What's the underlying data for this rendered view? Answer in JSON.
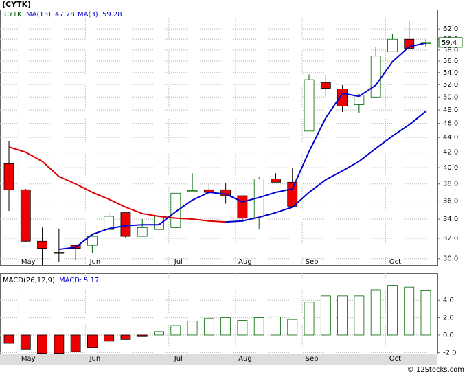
{
  "chart_data": [
    {
      "type": "candlestick",
      "title": "(CYTK)",
      "symbol": "CYTK",
      "categories": [
        null,
        "May",
        null,
        null,
        null,
        "Jun",
        null,
        null,
        null,
        null,
        "Jul",
        null,
        null,
        null,
        "Aug",
        null,
        null,
        null,
        "Sep",
        null,
        null,
        null,
        null,
        "Oct",
        null,
        null
      ],
      "open": [
        40.5,
        37.3,
        31.7,
        30.6,
        31.3,
        31.3,
        32.9,
        34.7,
        32.2,
        32.9,
        33.1,
        37.1,
        37.3,
        37.3,
        36.6,
        34.1,
        38.6,
        38.2,
        44.9,
        52.3,
        51.3,
        48.8,
        50.0,
        57.7,
        60.0,
        59.2
      ],
      "high": [
        43.5,
        37.4,
        33.1,
        33.0,
        31.4,
        32.5,
        34.7,
        34.7,
        34.0,
        35.0,
        36.9,
        39.3,
        38.0,
        38.1,
        36.6,
        38.8,
        39.3,
        40.0,
        53.7,
        53.7,
        51.9,
        50.5,
        58.5,
        61.0,
        63.6,
        59.9
      ],
      "low": [
        34.9,
        31.6,
        29.4,
        29.7,
        29.9,
        30.5,
        32.7,
        32.0,
        32.2,
        32.7,
        33.1,
        37.1,
        36.8,
        35.7,
        33.7,
        32.9,
        38.2,
        35.4,
        44.9,
        50.0,
        47.7,
        47.6,
        50.0,
        57.7,
        58.3,
        58.5
      ],
      "close": [
        37.3,
        31.7,
        31.0,
        30.5,
        31.0,
        32.2,
        34.3,
        32.2,
        33.1,
        34.3,
        36.9,
        37.2,
        37.0,
        36.6,
        34.1,
        38.6,
        38.2,
        35.4,
        52.8,
        51.4,
        48.6,
        50.3,
        56.9,
        60.0,
        58.3,
        59.4
      ],
      "up_color": "#006600",
      "down_color": "#ee0000",
      "series": [
        {
          "name": "MA(13)",
          "up_color": "#0000cc",
          "down_color": "#dd0000",
          "values": [
            42.7,
            42.0,
            40.8,
            38.9,
            38.0,
            37.0,
            36.2,
            35.3,
            34.6,
            34.3,
            34.1,
            34.0,
            33.8,
            33.7,
            33.8,
            34.2,
            34.7,
            35.3,
            37.0,
            38.5,
            39.6,
            40.8,
            42.5,
            44.2,
            45.8,
            47.78
          ]
        },
        {
          "name": "MA(3)",
          "color": "#0000cc",
          "values": [
            null,
            null,
            null,
            30.9,
            31.1,
            32.4,
            33.0,
            33.3,
            33.4,
            33.4,
            34.8,
            36.1,
            37.0,
            36.8,
            35.9,
            36.4,
            37.0,
            37.4,
            42.1,
            46.8,
            50.6,
            50.1,
            51.9,
            55.9,
            58.6,
            59.28
          ]
        }
      ],
      "log_scale": true,
      "grid": true,
      "ylim": [
        29.4,
        65.9
      ],
      "yticks": [
        {
          "value": 30,
          "label": "30.0"
        },
        {
          "value": 32,
          "label": "32.0"
        },
        {
          "value": 34,
          "label": "34.0"
        },
        {
          "value": 36,
          "label": "36.0"
        },
        {
          "value": 38,
          "label": "38.0"
        },
        {
          "value": 40,
          "label": "40.0"
        },
        {
          "value": 42,
          "label": "42.0"
        },
        {
          "value": 44,
          "label": "44.0"
        },
        {
          "value": 46,
          "label": "46.0"
        },
        {
          "value": 48,
          "label": "48.0"
        },
        {
          "value": 50,
          "label": "50.0"
        },
        {
          "value": 52,
          "label": "52.0"
        },
        {
          "value": 54,
          "label": "54.0"
        },
        {
          "value": 56,
          "label": "56.0"
        },
        {
          "value": 58,
          "label": "58.0"
        },
        {
          "value": 60,
          "label": "60.0"
        },
        {
          "value": 62,
          "label": "62.0"
        }
      ]
    },
    {
      "type": "bar",
      "title": "MACD(26,12,9)",
      "current_label": "MACD:",
      "categories": [
        null,
        "May",
        null,
        null,
        null,
        "Jun",
        null,
        null,
        null,
        null,
        "Jul",
        null,
        null,
        null,
        "Aug",
        null,
        null,
        null,
        "Sep",
        null,
        null,
        null,
        null,
        "Oct",
        null,
        null
      ],
      "values": [
        -0.95,
        -1.6,
        -2.1,
        -2.1,
        -1.9,
        -1.4,
        -0.7,
        -0.5,
        -0.1,
        0.4,
        1.1,
        1.6,
        1.9,
        2.0,
        1.7,
        2.0,
        2.1,
        1.8,
        3.8,
        4.5,
        4.5,
        4.5,
        5.2,
        5.7,
        5.5,
        5.17
      ],
      "up_color": "#006600",
      "down_color": "#ee0000",
      "grid": true,
      "ylim": [
        -2.13,
        7.09
      ],
      "yticks": [
        {
          "value": -2,
          "label": "-2.0"
        },
        {
          "value": 0,
          "label": "0.0"
        },
        {
          "value": 2,
          "label": "2.0"
        },
        {
          "value": 4,
          "label": "4.0"
        }
      ]
    }
  ],
  "footer": "© 12Stocks.com"
}
